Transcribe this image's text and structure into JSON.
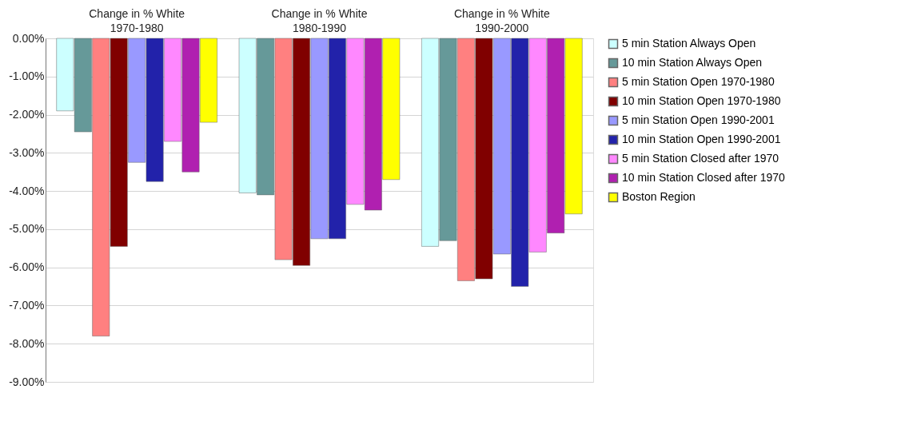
{
  "chart_data": {
    "type": "bar",
    "categories": [
      "Change in % White\n1970-1980",
      "Change in % White\n1980-1990",
      "Change in % White\n1990-2000"
    ],
    "series": [
      {
        "name": "5 min   Station Always Open",
        "color": "#ccffff",
        "values": [
          -1.9,
          -4.05,
          -5.45
        ]
      },
      {
        "name": "10 min  Station Always Open",
        "color": "#669999",
        "values": [
          -2.45,
          -4.1,
          -5.3
        ]
      },
      {
        "name": "5 min   Station Open 1970-1980",
        "color": "#ff8080",
        "values": [
          -7.8,
          -5.8,
          -6.35
        ]
      },
      {
        "name": "10 min  Station Open 1970-1980",
        "color": "#800000",
        "values": [
          -5.45,
          -5.95,
          -6.3
        ]
      },
      {
        "name": "5 min   Station Open 1990-2001",
        "color": "#9999ff",
        "values": [
          -3.25,
          -5.25,
          -5.65
        ]
      },
      {
        "name": "10 min  Station Open 1990-2001",
        "color": "#2222aa",
        "values": [
          -3.75,
          -5.25,
          -6.5
        ]
      },
      {
        "name": "5 min   Station Closed after 1970",
        "color": "#ff88ff",
        "values": [
          -2.7,
          -4.35,
          -5.6
        ]
      },
      {
        "name": "10 min  Station Closed after 1970",
        "color": "#b020b0",
        "values": [
          -3.5,
          -4.5,
          -5.1
        ]
      },
      {
        "name": "Boston Region",
        "color": "#ffff00",
        "values": [
          -2.2,
          -3.7,
          -4.6
        ]
      }
    ],
    "ylim": [
      -9,
      0
    ],
    "yticks": [
      {
        "value": 0,
        "label": "0.00%"
      },
      {
        "value": -1,
        "label": "-1.00%"
      },
      {
        "value": -2,
        "label": "-2.00%"
      },
      {
        "value": -3,
        "label": "-3.00%"
      },
      {
        "value": -4,
        "label": "-4.00%"
      },
      {
        "value": -5,
        "label": "-5.00%"
      },
      {
        "value": -6,
        "label": "-6.00%"
      },
      {
        "value": -7,
        "label": "-7.00%"
      },
      {
        "value": -8,
        "label": "-8.00%"
      },
      {
        "value": -9,
        "label": "-9.00%"
      }
    ],
    "grid": "y",
    "legend": "right"
  }
}
